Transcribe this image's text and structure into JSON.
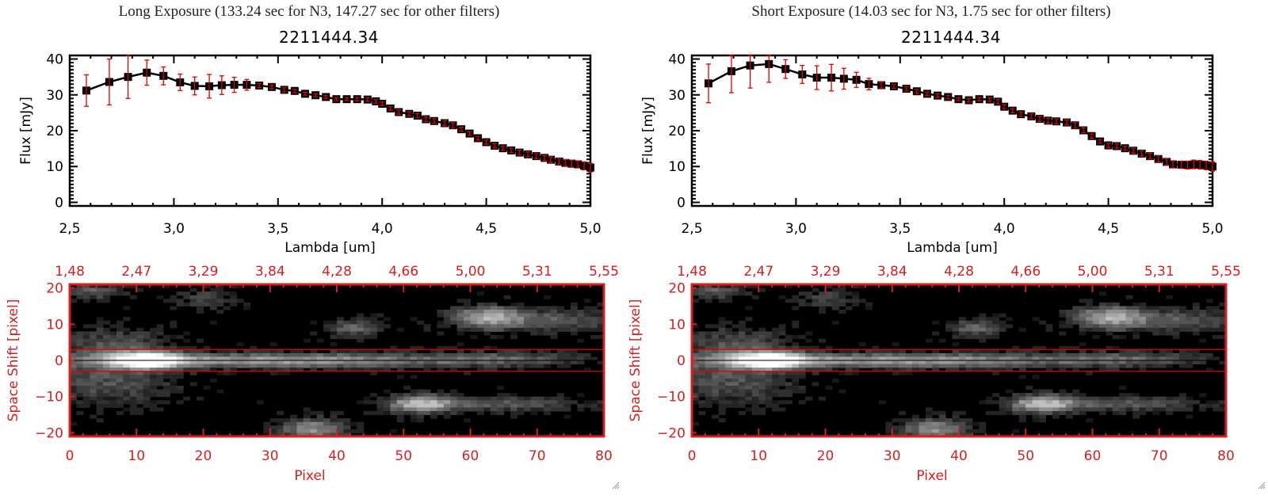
{
  "chart_data": [
    {
      "type": "line",
      "panel": "long-exposure",
      "title": "Long Exposure (133.24 sec for N3, 147.27 sec for other filters)",
      "subtitle": "2211444.34",
      "xlabel": "Lambda [um]",
      "ylabel": "Flux [mJy]",
      "xlim": [
        2.5,
        5.0
      ],
      "ylim": [
        -1,
        41
      ],
      "x_ticks": [
        "2.5",
        "3.0",
        "3.5",
        "4.0",
        "4.5",
        "5.0"
      ],
      "x_tick_values": [
        2.5,
        3.0,
        3.5,
        4.0,
        4.5,
        5.0
      ],
      "y_ticks": [
        "0",
        "10",
        "20",
        "30",
        "40"
      ],
      "y_tick_values": [
        0,
        10,
        20,
        30,
        40
      ],
      "series": [
        {
          "name": "flux",
          "marker": "square",
          "line_color": "#000000",
          "error_color": "#e00000",
          "x": [
            2.58,
            2.69,
            2.78,
            2.87,
            2.95,
            3.03,
            3.1,
            3.17,
            3.23,
            3.29,
            3.35,
            3.41,
            3.47,
            3.53,
            3.58,
            3.63,
            3.68,
            3.73,
            3.78,
            3.83,
            3.88,
            3.93,
            3.97,
            4.0,
            4.04,
            4.08,
            4.13,
            4.17,
            4.21,
            4.25,
            4.3,
            4.34,
            4.38,
            4.42,
            4.46,
            4.5,
            4.54,
            4.58,
            4.62,
            4.66,
            4.7,
            4.74,
            4.78,
            4.81,
            4.85,
            4.88,
            4.91,
            4.94,
            4.97,
            5.0
          ],
          "y": [
            31.2,
            33.6,
            35.0,
            36.2,
            35.3,
            33.5,
            32.5,
            32.4,
            32.7,
            32.8,
            32.8,
            32.6,
            32.2,
            31.4,
            31.1,
            30.3,
            29.9,
            29.4,
            28.8,
            28.8,
            28.8,
            28.7,
            28.2,
            27.5,
            26.2,
            25.2,
            24.7,
            24.2,
            23.2,
            22.7,
            22.1,
            21.5,
            20.4,
            19.2,
            17.9,
            16.8,
            15.8,
            15.1,
            14.5,
            13.9,
            13.4,
            12.9,
            12.4,
            11.9,
            11.4,
            11.0,
            10.8,
            10.6,
            10.2,
            9.7
          ],
          "err": [
            4.4,
            6.4,
            6.0,
            3.5,
            2.5,
            2.3,
            2.5,
            3.3,
            2.6,
            2.1,
            1.5,
            0.6,
            0.5,
            0.6,
            0.5,
            0.4,
            0.4,
            0.4,
            0.4,
            0.4,
            0.5,
            0.5,
            0.5,
            0.5,
            0.5,
            0.6,
            0.6,
            0.6,
            0.6,
            0.6,
            0.7,
            0.8,
            0.6,
            0.5,
            0.5,
            0.6,
            0.6,
            0.6,
            0.6,
            0.7,
            0.7,
            0.7,
            0.7,
            0.8,
            0.8,
            0.9,
            1.0,
            1.0,
            1.1,
            1.2
          ]
        }
      ]
    },
    {
      "type": "line",
      "panel": "short-exposure",
      "title": "Short Exposure (14.03 sec for N3, 1.75 sec for other filters)",
      "subtitle": "2211444.34",
      "xlabel": "Lambda [um]",
      "ylabel": "Flux [mJy]",
      "xlim": [
        2.5,
        5.0
      ],
      "ylim": [
        -1,
        41
      ],
      "x_ticks": [
        "2.5",
        "3.0",
        "3.5",
        "4.0",
        "4.5",
        "5.0"
      ],
      "x_tick_values": [
        2.5,
        3.0,
        3.5,
        4.0,
        4.5,
        5.0
      ],
      "y_ticks": [
        "0",
        "10",
        "20",
        "30",
        "40"
      ],
      "y_tick_values": [
        0,
        10,
        20,
        30,
        40
      ],
      "series": [
        {
          "name": "flux",
          "marker": "square",
          "line_color": "#000000",
          "error_color": "#e00000",
          "x": [
            2.58,
            2.69,
            2.78,
            2.87,
            2.95,
            3.03,
            3.1,
            3.17,
            3.23,
            3.29,
            3.35,
            3.41,
            3.47,
            3.53,
            3.58,
            3.63,
            3.68,
            3.73,
            3.78,
            3.83,
            3.88,
            3.93,
            3.97,
            4.0,
            4.04,
            4.08,
            4.13,
            4.17,
            4.21,
            4.25,
            4.3,
            4.34,
            4.38,
            4.42,
            4.46,
            4.5,
            4.54,
            4.58,
            4.62,
            4.66,
            4.7,
            4.74,
            4.78,
            4.81,
            4.85,
            4.88,
            4.91,
            4.94,
            4.97,
            5.0
          ],
          "y": [
            33.2,
            36.6,
            38.2,
            38.6,
            37.2,
            35.7,
            34.8,
            34.8,
            34.5,
            34.2,
            33.0,
            32.7,
            32.4,
            31.7,
            31.0,
            30.3,
            29.8,
            29.4,
            28.8,
            28.5,
            28.8,
            28.7,
            28.1,
            26.7,
            25.6,
            24.6,
            24.0,
            23.3,
            22.8,
            22.6,
            22.3,
            21.5,
            20.1,
            18.5,
            17.0,
            15.9,
            15.7,
            15.1,
            14.4,
            13.6,
            12.9,
            12.1,
            11.3,
            10.6,
            10.5,
            10.4,
            10.6,
            10.5,
            10.3,
            10.0
          ],
          "err": [
            5.4,
            6.0,
            6.3,
            5.1,
            2.6,
            2.5,
            3.3,
            3.7,
            2.9,
            2.1,
            1.6,
            0.8,
            0.6,
            0.6,
            0.6,
            0.5,
            0.5,
            0.5,
            0.4,
            0.5,
            0.5,
            0.5,
            0.6,
            0.6,
            0.6,
            0.6,
            0.7,
            0.7,
            0.7,
            0.7,
            0.7,
            0.8,
            0.7,
            0.6,
            0.5,
            0.6,
            0.6,
            0.6,
            0.7,
            0.8,
            0.8,
            0.8,
            0.9,
            1.0,
            1.0,
            1.1,
            1.2,
            1.2,
            1.2,
            1.3
          ]
        }
      ]
    },
    {
      "type": "heatmap",
      "panel": "long-exposure-image",
      "xlabel": "Pixel",
      "ylabel": "Space Shift [pixel]",
      "top_axis_label": "",
      "xlim": [
        0,
        80
      ],
      "ylim": [
        -21,
        21
      ],
      "x_ticks": [
        "0",
        "10",
        "20",
        "30",
        "40",
        "50",
        "60",
        "70",
        "80"
      ],
      "top_ticks": [
        "1.48",
        "2.47",
        "3.29",
        "3.84",
        "4.28",
        "4.66",
        "5.00",
        "5.31",
        "5.55"
      ],
      "y_ticks": [
        "20",
        "10",
        "0",
        "-10",
        "-20"
      ],
      "y_tick_values": [
        20,
        10,
        0,
        -10,
        -20
      ],
      "aperture_lines": [
        3,
        -3
      ],
      "center_line": 0,
      "colormap": "grayscale",
      "axis_color": "#d42020"
    },
    {
      "type": "heatmap",
      "panel": "short-exposure-image",
      "xlabel": "Pixel",
      "ylabel": "Space Shift [pixel]",
      "xlim": [
        0,
        80
      ],
      "ylim": [
        -21,
        21
      ],
      "x_ticks": [
        "0",
        "10",
        "20",
        "30",
        "40",
        "50",
        "60",
        "70",
        "80"
      ],
      "top_ticks": [
        "1.48",
        "2.47",
        "3.29",
        "3.84",
        "4.28",
        "4.66",
        "5.00",
        "5.31",
        "5.55"
      ],
      "y_ticks": [
        "20",
        "10",
        "0",
        "-10",
        "-20"
      ],
      "y_tick_values": [
        20,
        10,
        0,
        -10,
        -20
      ],
      "aperture_lines": [
        3,
        -3
      ],
      "center_line": 0,
      "colormap": "grayscale",
      "axis_color": "#d42020"
    }
  ],
  "panels": [
    {
      "title": "Long Exposure (133.24 sec for N3, 147.27 sec for other filters)",
      "name": "2211444.34"
    },
    {
      "title": "Short Exposure (14.03 sec for N3, 1.75 sec for other filters)",
      "name": "2211444.34"
    }
  ],
  "colors": {
    "axis_red": "#d42020",
    "error_red": "#e00000",
    "line": "#000000"
  },
  "icons": {
    "resize_grip": "resize-grip-icon"
  }
}
